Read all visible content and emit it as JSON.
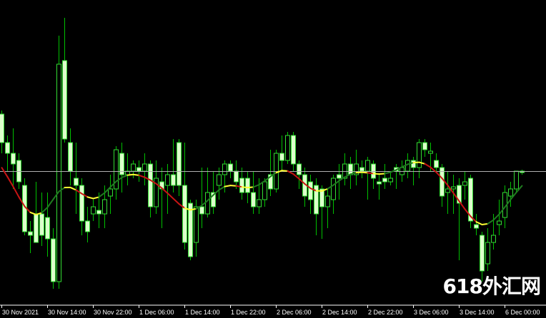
{
  "chart_data": {
    "type": "candlestick",
    "timeframe_hours": 1,
    "x_tick_labels": [
      "30 Nov 2021",
      "30 Nov 14:00",
      "30 Nov 22:00",
      "1 Dec 06:00",
      "1 Dec 14:00",
      "1 Dec 22:00",
      "2 Dec 06:00",
      "2 Dec 14:00",
      "2 Dec 22:00",
      "3 Dec 06:00",
      "3 Dec 14:00",
      "6 Dec 00:00"
    ],
    "x_tick_every_bars": 8,
    "ylim": [
      1.1112,
      1.154
    ],
    "current_price_line": 1.13,
    "ohlc": [
      [
        1.138,
        1.1385,
        1.1325,
        1.134
      ],
      [
        1.134,
        1.135,
        1.13,
        1.1325
      ],
      [
        1.1325,
        1.136,
        1.1275,
        1.131
      ],
      [
        1.1315,
        1.1325,
        1.1275,
        1.1285
      ],
      [
        1.128,
        1.129,
        1.121,
        1.1215
      ],
      [
        1.1215,
        1.123,
        1.1185,
        1.121
      ],
      [
        1.124,
        1.1285,
        1.12,
        1.12
      ],
      [
        1.124,
        1.127,
        1.1195,
        1.121
      ],
      [
        1.1235,
        1.127,
        1.118,
        1.1205
      ],
      [
        1.1205,
        1.122,
        1.1135,
        1.1145
      ],
      [
        1.1145,
        1.149,
        1.1135,
        1.145
      ],
      [
        1.1455,
        1.1515,
        1.134,
        1.1345
      ],
      [
        1.134,
        1.136,
        1.128,
        1.13
      ],
      [
        1.129,
        1.134,
        1.124,
        1.128
      ],
      [
        1.128,
        1.129,
        1.121,
        1.123
      ],
      [
        1.123,
        1.125,
        1.12,
        1.1215
      ],
      [
        1.124,
        1.126,
        1.123,
        1.125
      ],
      [
        1.1245,
        1.127,
        1.122,
        1.124
      ],
      [
        1.124,
        1.128,
        1.122,
        1.126
      ],
      [
        1.1265,
        1.1295,
        1.124,
        1.1275
      ],
      [
        1.1275,
        1.1335,
        1.126,
        1.133
      ],
      [
        1.1325,
        1.134,
        1.127,
        1.1295
      ],
      [
        1.1295,
        1.1325,
        1.128,
        1.13
      ],
      [
        1.13,
        1.1315,
        1.129,
        1.131
      ],
      [
        1.1305,
        1.1315,
        1.1285,
        1.13
      ],
      [
        1.13,
        1.1325,
        1.128,
        1.131
      ],
      [
        1.131,
        1.1315,
        1.1235,
        1.125
      ],
      [
        1.125,
        1.1315,
        1.124,
        1.129
      ],
      [
        1.1285,
        1.1305,
        1.122,
        1.1275
      ],
      [
        1.128,
        1.131,
        1.124,
        1.1295
      ],
      [
        1.1295,
        1.1345,
        1.127,
        1.128
      ],
      [
        1.134,
        1.1345,
        1.1265,
        1.128
      ],
      [
        1.128,
        1.134,
        1.119,
        1.12
      ],
      [
        1.1255,
        1.126,
        1.1175,
        1.118
      ],
      [
        1.12,
        1.126,
        1.118,
        1.125
      ],
      [
        1.125,
        1.1305,
        1.122,
        1.124
      ],
      [
        1.124,
        1.1305,
        1.1235,
        1.127
      ],
      [
        1.127,
        1.13,
        1.124,
        1.125
      ],
      [
        1.128,
        1.1305,
        1.126,
        1.1295
      ],
      [
        1.1295,
        1.1315,
        1.127,
        1.131
      ],
      [
        1.131,
        1.1315,
        1.129,
        1.13
      ],
      [
        1.13,
        1.1315,
        1.1275,
        1.1285
      ],
      [
        1.129,
        1.1305,
        1.126,
        1.127
      ],
      [
        1.129,
        1.13,
        1.1255,
        1.127
      ],
      [
        1.127,
        1.13,
        1.124,
        1.125
      ],
      [
        1.125,
        1.129,
        1.124,
        1.126
      ],
      [
        1.126,
        1.129,
        1.125,
        1.1285
      ],
      [
        1.1295,
        1.133,
        1.1265,
        1.1275
      ],
      [
        1.1275,
        1.133,
        1.127,
        1.1325
      ],
      [
        1.1325,
        1.135,
        1.13,
        1.1315
      ],
      [
        1.1315,
        1.1355,
        1.131,
        1.135
      ],
      [
        1.135,
        1.1355,
        1.13,
        1.131
      ],
      [
        1.131,
        1.1315,
        1.1275,
        1.1295
      ],
      [
        1.1295,
        1.1305,
        1.125,
        1.1265
      ],
      [
        1.1285,
        1.1295,
        1.124,
        1.126
      ],
      [
        1.128,
        1.129,
        1.121,
        1.124
      ],
      [
        1.1275,
        1.128,
        1.1205,
        1.125
      ],
      [
        1.125,
        1.1275,
        1.122,
        1.1265
      ],
      [
        1.126,
        1.1295,
        1.124,
        1.129
      ],
      [
        1.1295,
        1.131,
        1.126,
        1.129
      ],
      [
        1.129,
        1.1325,
        1.128,
        1.131
      ],
      [
        1.131,
        1.132,
        1.1275,
        1.1295
      ],
      [
        1.1295,
        1.133,
        1.128,
        1.131
      ],
      [
        1.1305,
        1.1315,
        1.129,
        1.13
      ],
      [
        1.13,
        1.132,
        1.126,
        1.1315
      ],
      [
        1.131,
        1.1315,
        1.1275,
        1.129
      ],
      [
        1.1285,
        1.1295,
        1.126,
        1.1282
      ],
      [
        1.129,
        1.131,
        1.1275,
        1.1285
      ],
      [
        1.1285,
        1.13,
        1.128,
        1.129
      ],
      [
        1.1305,
        1.131,
        1.1275,
        1.13
      ],
      [
        1.1295,
        1.1315,
        1.1285,
        1.1305
      ],
      [
        1.13,
        1.1325,
        1.129,
        1.1315
      ],
      [
        1.1315,
        1.132,
        1.128,
        1.1305
      ],
      [
        1.1305,
        1.1345,
        1.129,
        1.134
      ],
      [
        1.134,
        1.1345,
        1.132,
        1.133
      ],
      [
        1.1325,
        1.134,
        1.13,
        1.1328
      ],
      [
        1.1315,
        1.1325,
        1.13,
        1.1305
      ],
      [
        1.1305,
        1.131,
        1.125,
        1.1265
      ],
      [
        1.127,
        1.13,
        1.124,
        1.1275
      ],
      [
        1.1275,
        1.1295,
        1.124,
        1.1278
      ],
      [
        1.128,
        1.129,
        1.1175,
        1.1255
      ],
      [
        1.128,
        1.13,
        1.126,
        1.1285
      ],
      [
        1.129,
        1.1295,
        1.122,
        1.123
      ],
      [
        1.1225,
        1.124,
        1.121,
        1.122
      ],
      [
        1.121,
        1.1215,
        1.1145,
        1.116
      ],
      [
        1.117,
        1.122,
        1.116,
        1.12
      ],
      [
        1.12,
        1.124,
        1.119,
        1.121
      ],
      [
        1.1225,
        1.126,
        1.121,
        1.123
      ],
      [
        1.1235,
        1.128,
        1.122,
        1.127
      ],
      [
        1.1265,
        1.1285,
        1.125,
        1.1275
      ],
      [
        1.1275,
        1.13,
        1.127,
        1.13
      ],
      [
        1.13,
        1.1302,
        1.1295,
        1.1298
      ]
    ],
    "colors": {
      "background": "#000000",
      "wick": "#00c000",
      "bull_body": "#000000",
      "bear_body": "#ddffcc",
      "candle_outline": "#33dd33",
      "indicator_up": "#1f7a1f",
      "indicator_down": "#c81414",
      "indicator_turn": "#ffff33",
      "price_line": "#b0b0b0",
      "axis_text": "#ffffff"
    },
    "grid": false
  },
  "watermark": "618外汇网"
}
